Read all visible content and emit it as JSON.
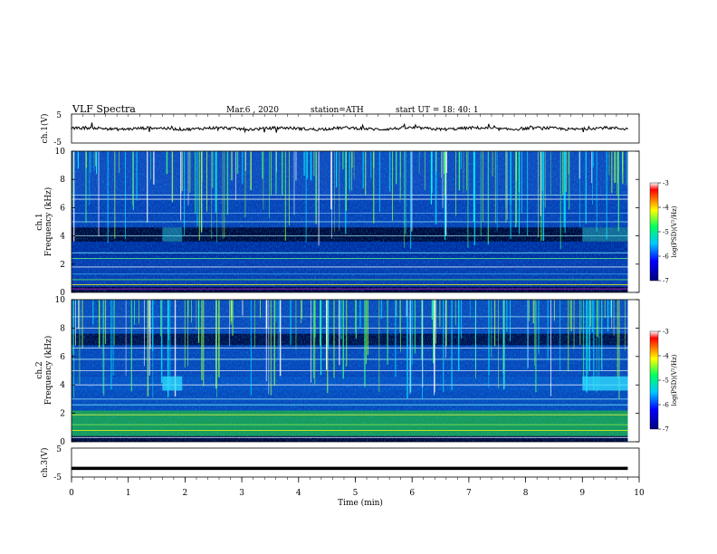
{
  "header": {
    "title": "VLF  Spectra",
    "date": "Mar.6  , 2020",
    "station": "station=ATH",
    "start": "start  UT  =   18: 40: 1"
  },
  "chart_data": [
    {
      "type": "line",
      "ylabel": "ch.1(V)",
      "yticks": [
        "5",
        "-5"
      ],
      "ylim": [
        -5,
        5
      ],
      "xlim": [
        0,
        10
      ],
      "trend": "noisy waveform near 0 V across the full 0–9.8 min record"
    },
    {
      "type": "heatmap",
      "ylabel": "Frequency  (kHz)",
      "channel_label": "ch.1",
      "yticks": [
        "0",
        "2",
        "4",
        "6",
        "8",
        "10"
      ],
      "ylim": [
        0,
        10
      ],
      "xlim": [
        0,
        9.8
      ],
      "colorbar": {
        "label": "log(PSD)(V²/Hz)",
        "ticks": [
          "-3",
          "-4",
          "-5",
          "-6",
          "-7"
        ],
        "range": [
          -7,
          -3
        ]
      },
      "bright_patches_min": [
        [
          1.6,
          1.95
        ],
        [
          9.0,
          9.8
        ]
      ]
    },
    {
      "type": "heatmap",
      "ylabel": "Frequency  (kHz)",
      "channel_label": "ch.2",
      "yticks": [
        "0",
        "2",
        "4",
        "6",
        "8",
        "10"
      ],
      "ylim": [
        0,
        10
      ],
      "xlim": [
        0,
        9.8
      ],
      "colorbar": {
        "label": "log(PSD)(V²/Hz)",
        "ticks": [
          "-3",
          "-4",
          "-5",
          "-6",
          "-7"
        ],
        "range": [
          -7,
          -3
        ]
      },
      "bright_patches_min": [
        [
          1.6,
          1.95
        ],
        [
          9.0,
          9.8
        ]
      ]
    },
    {
      "type": "line",
      "ylabel": "ch.3(V)",
      "yticks": [
        "5",
        "-5"
      ],
      "ylim": [
        -5,
        5
      ],
      "xlim": [
        0,
        10
      ],
      "trend": "flat line near -2 V"
    }
  ],
  "xaxis": {
    "label": "Time  (min)",
    "ticks": [
      "0",
      "1",
      "2",
      "3",
      "4",
      "5",
      "6",
      "7",
      "8",
      "9",
      "10"
    ]
  },
  "colors": {
    "spectrogram_base": "#00007a",
    "line": "#000000"
  }
}
